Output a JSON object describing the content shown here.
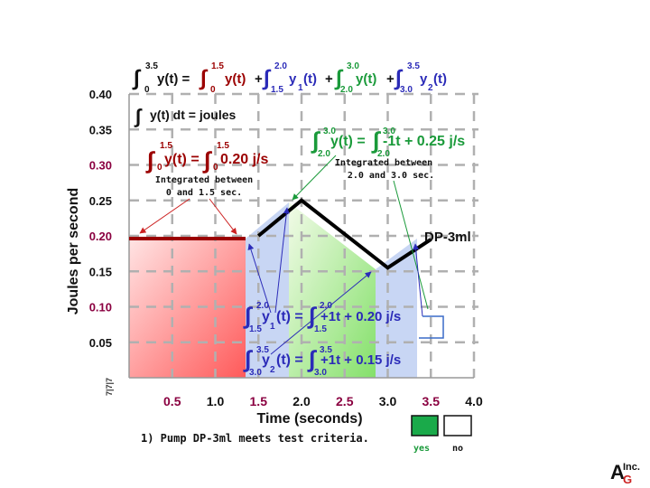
{
  "chart_data": {
    "type": "line",
    "title": "",
    "xlabel": "Time (seconds)",
    "ylabel": "Joules  per second",
    "xlim": [
      0,
      4.0
    ],
    "ylim": [
      0,
      0.4
    ],
    "x_ticks": [
      "0.5",
      "1.0",
      "1.5",
      "2.0",
      "2.5",
      "3.0",
      "3.5",
      "4.0"
    ],
    "y_ticks": [
      "0.05",
      "0.10",
      "0.15",
      "0.20",
      "0.25",
      "0.30",
      "0.35",
      "0.40"
    ],
    "series": [
      {
        "name": "DP-3ml",
        "x": [
          0,
          1.5,
          2.0,
          3.0,
          3.5
        ],
        "y": [
          0.2,
          0.2,
          0.25,
          0.155,
          0.195
        ]
      }
    ],
    "grid": true
  },
  "colors": {
    "red": "#9b0000",
    "blue": "#2b2bb8",
    "green": "#1a9a3a",
    "grid": "#b0b0b0",
    "highlight_tick": "#8a0040"
  },
  "equation_top": {
    "lhs_lower": "0",
    "lhs_upper": "3.5",
    "lhs": "y(t) =",
    "t1_lower": "0",
    "t1_upper": "1.5",
    "t1": "y(t)",
    "plus1": "+",
    "t2_lower": "1.5",
    "t2_upper": "2.0",
    "t2": "y",
    "t2_sub": "1",
    "t2_tail": "(t)",
    "plus2": "+",
    "t3_lower": "2.0",
    "t3_upper": "3.0",
    "t3": "y(t)",
    "plus3": "+",
    "t4_lower": "3.0",
    "t4_upper": "3.5",
    "t4": "y",
    "t4_sub": "2",
    "t4_tail": "(t)"
  },
  "joules_eq": "y(t) dt = joules",
  "red_eq": {
    "lower": "0",
    "upper": "1.5",
    "lhs": "y(t) =",
    "lower2": "0",
    "upper2": "1.5",
    "rhs": "0.20 j/s"
  },
  "red_note": {
    "line1": "Integrated between",
    "line2": "0 and 1.5 sec."
  },
  "green_eq": {
    "lower": "2.0",
    "upper": "3.0",
    "lhs": "y(t) =",
    "lower2": "2.0",
    "upper2": "3.0",
    "rhs": "-1t + 0.25 j/s"
  },
  "green_note": {
    "line1": "Integrated between",
    "line2": "2.0 and 3.0 sec."
  },
  "blue_eq1": {
    "lower": "1.5",
    "upper": "2.0",
    "lhs": "y",
    "sub": "1",
    "tail": "(t) =",
    "lower2": "1.5",
    "upper2": "2.0",
    "rhs": "+1t + 0.20 j/s"
  },
  "blue_eq2": {
    "lower": "3.0",
    "upper": "3.5",
    "lhs": "y",
    "sub": "2",
    "tail": "(t) =",
    "lower2": "3.0",
    "upper2": "3.5",
    "rhs": "+1t + 0.15 j/s"
  },
  "series_label": "DP-3ml",
  "origin_mark": "7|7|7",
  "criteria": {
    "text": "1)  Pump DP-3ml meets test criteria.",
    "yes": "yes",
    "no": "no"
  },
  "logo": {
    "letter": "A",
    "suffix": "Inc.",
    "mark": "G"
  }
}
